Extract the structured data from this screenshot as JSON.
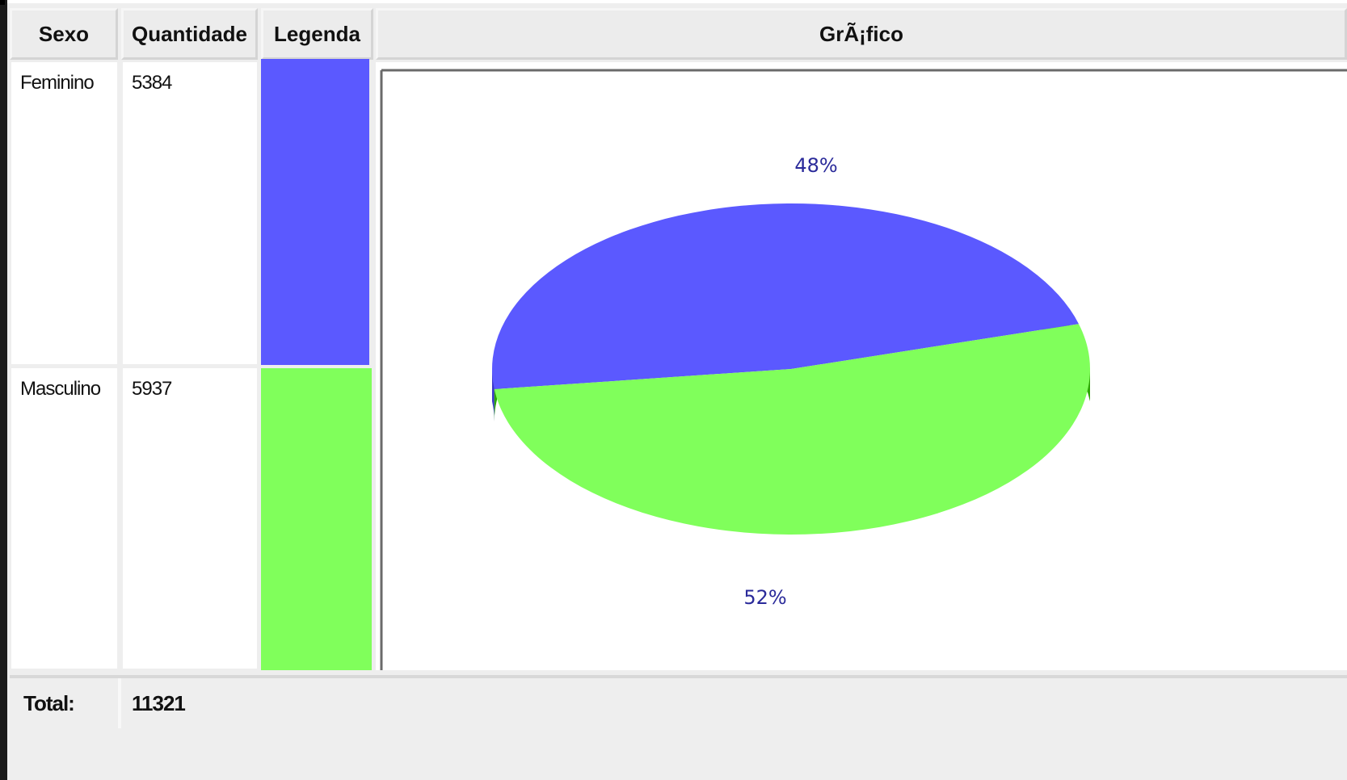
{
  "table": {
    "headers": {
      "sexo": "Sexo",
      "quantidade": "Quantidade",
      "legenda": "Legenda",
      "grafico": "GrÃ¡fico"
    },
    "rows": [
      {
        "sexo": "Feminino",
        "quantidade": "5384",
        "color": "#5b59ff"
      },
      {
        "sexo": "Masculino",
        "quantidade": "5937",
        "color": "#80ff5b"
      }
    ],
    "total_label": "Total:",
    "total_value": "11321"
  },
  "chart_data": {
    "type": "pie",
    "style": "3d",
    "title": "",
    "categories": [
      "Feminino",
      "Masculino"
    ],
    "values": [
      5384,
      5937
    ],
    "percent_labels": [
      "48%",
      "52%"
    ],
    "colors": [
      "#5b59ff",
      "#80ff5b"
    ],
    "side_colors": [
      "#3a38c8",
      "#2aa500"
    ],
    "legend": "table-column"
  }
}
